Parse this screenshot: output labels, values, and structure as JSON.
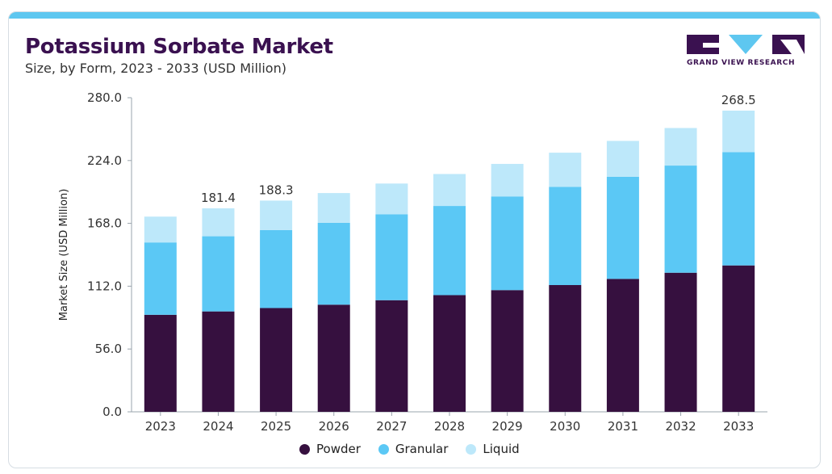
{
  "header": {
    "title": "Potassium Sorbate Market",
    "subtitle": "Size, by Form, 2023 - 2033 (USD Million)"
  },
  "brand": {
    "logo_icon": "grand-view-research-logo",
    "name": "GRAND VIEW RESEARCH",
    "accent_color": "#5ec7f0",
    "title_color": "#3a1150"
  },
  "chart_data": {
    "type": "bar",
    "stacked": true,
    "title": "Potassium Sorbate Market",
    "subtitle": "Size, by Form, 2023 - 2033 (USD Million)",
    "xlabel": "",
    "ylabel": "Market Size (USD Million)",
    "ylim": [
      0,
      280
    ],
    "yticks": [
      "0.0",
      "56.0",
      "112.0",
      "168.0",
      "224.0",
      "280.0"
    ],
    "grid": false,
    "legend": "bottom-center",
    "categories": [
      "2023",
      "2024",
      "2025",
      "2026",
      "2027",
      "2028",
      "2029",
      "2030",
      "2031",
      "2032",
      "2033"
    ],
    "series": [
      {
        "name": "Powder",
        "color": "#36103f",
        "values": [
          86.5,
          89.5,
          92.5,
          95.5,
          99.5,
          104.0,
          108.5,
          113.0,
          118.5,
          124.0,
          130.5
        ]
      },
      {
        "name": "Granular",
        "color": "#5bc8f5",
        "values": [
          64.5,
          67.0,
          69.5,
          73.0,
          76.5,
          79.5,
          83.5,
          87.5,
          91.0,
          95.5,
          101.0
        ]
      },
      {
        "name": "Liquid",
        "color": "#bde8fa",
        "values": [
          23.0,
          24.9,
          26.3,
          26.5,
          27.5,
          28.5,
          29.0,
          30.5,
          32.0,
          33.5,
          37.0
        ]
      }
    ],
    "data_labels": [
      {
        "category": "2024",
        "text": "181.4"
      },
      {
        "category": "2025",
        "text": "188.3"
      },
      {
        "category": "2033",
        "text": "268.5"
      }
    ]
  }
}
